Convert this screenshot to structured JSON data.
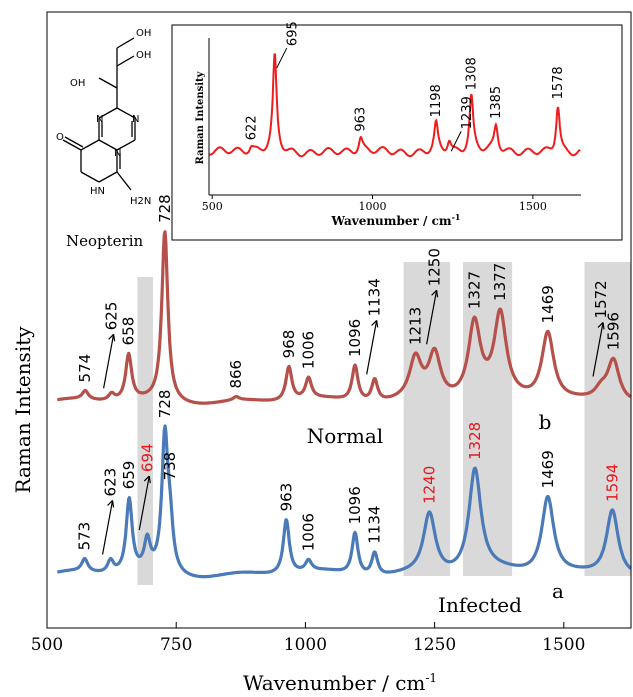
{
  "chart_data": [
    {
      "type": "line",
      "xlabel": "Wavenumber / cm",
      "xlabel_sup": "-1",
      "ylabel": "Raman Intensity",
      "xlim": [
        500,
        1630
      ],
      "x_ticks": [
        500,
        750,
        1000,
        1250,
        1500
      ],
      "x_tick_labels": [
        "500",
        "750",
        "1000",
        "1250",
        "1500"
      ],
      "grid": false,
      "shaded_bands": [
        [
          675,
          705
        ],
        [
          1190,
          1280
        ],
        [
          1305,
          1400
        ],
        [
          1540,
          1630
        ]
      ],
      "series": [
        {
          "name": "Normal",
          "letter": "b",
          "color": "#b5504a",
          "baseline": 0.49,
          "peaks": [
            {
              "x": 574,
              "h": 0.05,
              "label": "574"
            },
            {
              "x": 625,
              "h": 0.04,
              "label": "625",
              "arrow": true
            },
            {
              "x": 658,
              "h": 0.27,
              "label": "658"
            },
            {
              "x": 728,
              "h": 1.0,
              "label": "728"
            },
            {
              "x": 866,
              "h": 0.02,
              "label": "866"
            },
            {
              "x": 968,
              "h": 0.2,
              "label": "968"
            },
            {
              "x": 1006,
              "h": 0.12,
              "label": "1006"
            },
            {
              "x": 1096,
              "h": 0.21,
              "label": "1096"
            },
            {
              "x": 1134,
              "h": 0.13,
              "label": "1134",
              "arrow": true
            },
            {
              "x": 1213,
              "h": 0.24,
              "label": "1213"
            },
            {
              "x": 1250,
              "h": 0.27,
              "label": "1250",
              "arrow": true
            },
            {
              "x": 1327,
              "h": 0.44,
              "label": "1327"
            },
            {
              "x": 1377,
              "h": 0.48,
              "label": "1377"
            },
            {
              "x": 1469,
              "h": 0.4,
              "label": "1469"
            },
            {
              "x": 1572,
              "h": 0.06,
              "label": "1572",
              "arrow": true
            },
            {
              "x": 1596,
              "h": 0.25,
              "label": "1596"
            }
          ]
        },
        {
          "name": "Infected",
          "letter": "a",
          "color": "#4a7ab8",
          "baseline": 0.05,
          "peaks": [
            {
              "x": 573,
              "h": 0.06,
              "label": "573"
            },
            {
              "x": 623,
              "h": 0.06,
              "label": "623",
              "arrow": true
            },
            {
              "x": 659,
              "h": 0.35,
              "label": "659"
            },
            {
              "x": 694,
              "h": 0.14,
              "label": "694",
              "highlight": true,
              "arrow": true
            },
            {
              "x": 728,
              "h": 0.63,
              "label": "728"
            },
            {
              "x": 738,
              "h": 0.2,
              "label": "738"
            },
            {
              "x": 963,
              "h": 0.26,
              "label": "963"
            },
            {
              "x": 1006,
              "h": 0.05,
              "label": "1006"
            },
            {
              "x": 1096,
              "h": 0.2,
              "label": "1096"
            },
            {
              "x": 1134,
              "h": 0.11,
              "label": "1134"
            },
            {
              "x": 1240,
              "h": 0.29,
              "label": "1240",
              "highlight": true
            },
            {
              "x": 1328,
              "h": 0.49,
              "label": "1328",
              "highlight": true
            },
            {
              "x": 1469,
              "h": 0.37,
              "label": "1469"
            },
            {
              "x": 1594,
              "h": 0.32,
              "label": "1594",
              "highlight": true
            }
          ]
        }
      ]
    },
    {
      "type": "line",
      "name": "inset",
      "xlabel": "Wavenumber / cm",
      "xlabel_sup": "-1",
      "ylabel": "Raman Intensity",
      "xlim": [
        490,
        1650
      ],
      "x_ticks": [
        500,
        1000,
        1500
      ],
      "x_tick_labels": [
        "500",
        "1000",
        "1500"
      ],
      "series": [
        {
          "name": "Neopterin",
          "color": "#ee1c1c",
          "peaks": [
            {
              "x": 622,
              "h": 0.05,
              "label": "622"
            },
            {
              "x": 695,
              "h": 0.95,
              "label": "695",
              "arrow": true
            },
            {
              "x": 963,
              "h": 0.14,
              "label": "963"
            },
            {
              "x": 1198,
              "h": 0.28,
              "label": "1198"
            },
            {
              "x": 1239,
              "h": 0.12,
              "label": "1239",
              "arrow": true
            },
            {
              "x": 1308,
              "h": 0.55,
              "label": "1308"
            },
            {
              "x": 1385,
              "h": 0.25,
              "label": "1385"
            },
            {
              "x": 1578,
              "h": 0.48,
              "label": "1578"
            }
          ]
        }
      ]
    }
  ],
  "molecule": {
    "caption": "Neopterin",
    "atom_labels": [
      "OH",
      "OH",
      "OH",
      "N",
      "N",
      "N",
      "HN",
      "O",
      "H2N"
    ]
  },
  "colors": {
    "highlight": "#e8161c",
    "band": "#d9d9d9",
    "axis": "#000000",
    "label": "#000000"
  }
}
